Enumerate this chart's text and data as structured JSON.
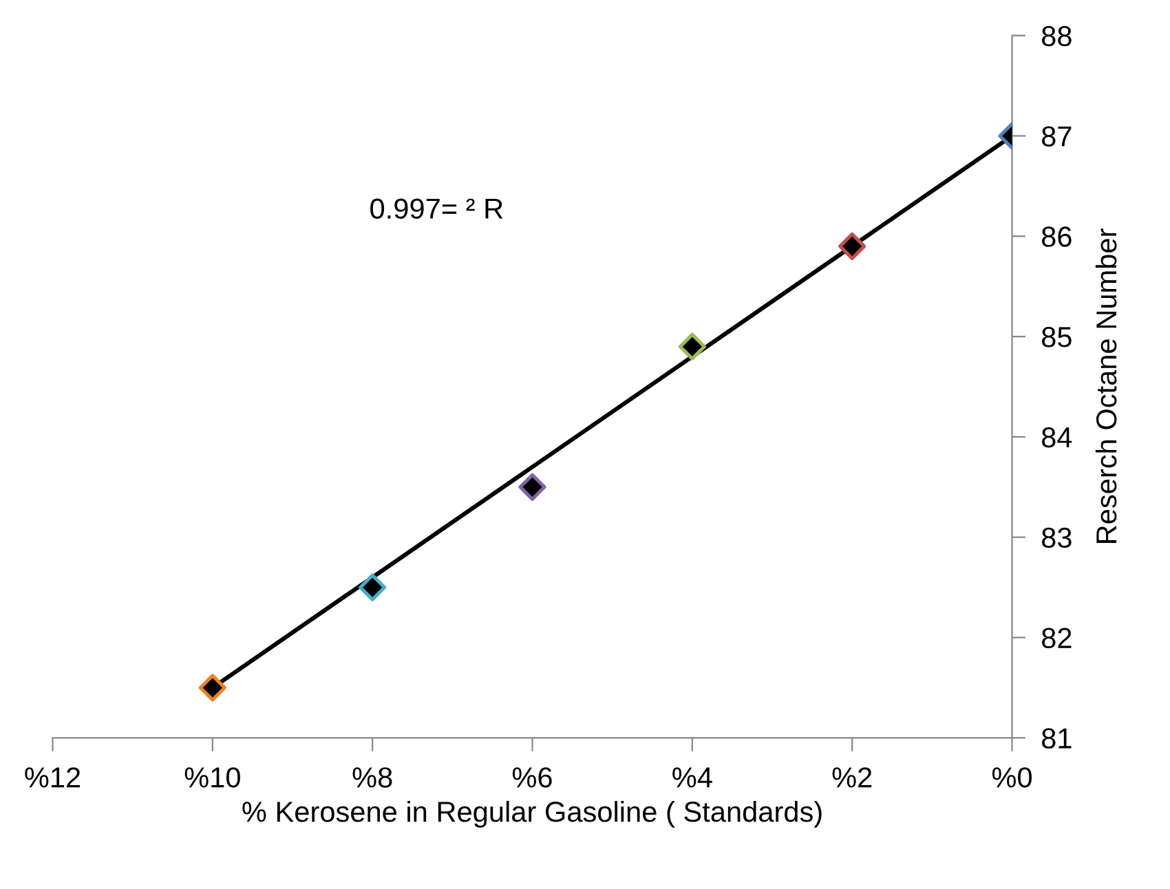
{
  "chart_data": {
    "type": "scatter",
    "xlabel": "% Kerosene in Regular Gasoline ( Standards)",
    "ylabel": "Reserch Octane Number",
    "annotations": [
      "0.997= ² R"
    ],
    "xlim": [
      12,
      0
    ],
    "xticks": [
      {
        "value": 12,
        "label": "%12"
      },
      {
        "value": 10,
        "label": "%10"
      },
      {
        "value": 8,
        "label": "%8"
      },
      {
        "value": 6,
        "label": "%6"
      },
      {
        "value": 4,
        "label": "%4"
      },
      {
        "value": 2,
        "label": "%2"
      },
      {
        "value": 0,
        "label": "%0"
      }
    ],
    "ylim": [
      81,
      88
    ],
    "yticks": [
      81,
      82,
      83,
      84,
      85,
      86,
      87,
      88
    ],
    "grid": false,
    "series": [
      {
        "type": "line",
        "color": "#000000",
        "x": [
          10,
          0
        ],
        "values": [
          81.5,
          87.0
        ],
        "line_style": "solid",
        "marker": "none"
      },
      {
        "marker": "diamond",
        "color": "#000000",
        "colors": [
          "#e8822a",
          "#4bacc6",
          "#8064a2",
          "#9bbb59",
          "#c0504d",
          "#4f81bd"
        ],
        "x": [
          10,
          8,
          6,
          4,
          2,
          0
        ],
        "values": [
          81.5,
          82.5,
          83.5,
          84.9,
          85.9,
          87.0
        ]
      }
    ]
  }
}
